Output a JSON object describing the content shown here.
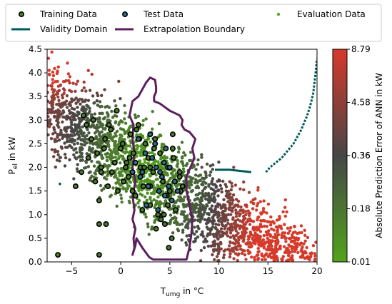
{
  "chart_data": {
    "type": "scatter",
    "title": "",
    "xlabel": "T",
    "xlabel_sub": "umg",
    "xlabel_suffix": " in °C",
    "ylabel": "P",
    "ylabel_sub": "el",
    "ylabel_suffix": " in kW",
    "xlim": [
      -7.5,
      20
    ],
    "ylim": [
      0,
      4.5
    ],
    "xticks": [
      -5,
      0,
      5,
      10,
      15,
      20
    ],
    "yticks": [
      0.0,
      0.5,
      1.0,
      1.5,
      2.0,
      2.5,
      3.0,
      3.5,
      4.0,
      4.5
    ],
    "xtick_labels": [
      "−5",
      "0",
      "5",
      "10",
      "15",
      "20"
    ],
    "ytick_labels": [
      "0.0",
      "0.5",
      "1.0",
      "1.5",
      "2.0",
      "2.5",
      "3.0",
      "3.5",
      "4.0",
      "4.5"
    ],
    "grid": false,
    "legend_position": "top",
    "legend": [
      {
        "name": "Training Data",
        "kind": "marker",
        "face": "#4a7a2a",
        "edge": "#000000"
      },
      {
        "name": "Test Data",
        "kind": "marker",
        "face": "#2c6e8a",
        "edge": "#000000"
      },
      {
        "name": "Evaluation Data",
        "kind": "dot",
        "face": "#5aa032"
      },
      {
        "name": "Validity Domain",
        "kind": "line",
        "color": "#005a5a"
      },
      {
        "name": "Extrapolation Boundary",
        "kind": "line",
        "color": "#5c1f5e"
      }
    ],
    "colorbar": {
      "label": "Absolute Prediction Error of ANN in kW",
      "tick_labels": [
        "0.01",
        "0.18",
        "0.36",
        "0.36",
        "4.58",
        "8.79"
      ],
      "tick_positions": [
        0.01,
        0.18,
        0.36,
        0.37,
        4.58,
        8.79
      ],
      "min": 0.01,
      "max": 8.79,
      "colors": [
        "#52a41c",
        "#464646",
        "#d63a2a"
      ]
    },
    "series": [
      {
        "name": "Training Data",
        "x": [
          -6.4,
          -3.3,
          -3.0,
          -2.6,
          -2.0,
          -1.7,
          -1.3,
          -1.0,
          -0.6,
          -0.3,
          0.2,
          0.5,
          0.8,
          1.0,
          1.3,
          1.5,
          1.8,
          2.0,
          2.3,
          2.5,
          2.8,
          3.0,
          3.3,
          3.5,
          3.8,
          4.0,
          4.3,
          4.5,
          4.8,
          5.0,
          5.3,
          5.6,
          6.0,
          6.3,
          -4.6,
          -4.0,
          -3.5,
          -2.8,
          -2.2,
          -1.6,
          -0.9,
          -0.4,
          0.3,
          0.9,
          1.6,
          2.2,
          2.8,
          3.4,
          4.1,
          4.7,
          5.4,
          6.1,
          -3.8,
          -2.4,
          -1.2,
          0.0,
          1.2,
          2.4,
          3.6,
          4.8,
          6.0,
          -2.0,
          0.6,
          3.0,
          5.2,
          -1.5,
          1.9,
          4.4,
          -2.2,
          -2.2,
          4.9,
          5.3
        ],
        "y": [
          0.15,
          2.2,
          2.6,
          1.7,
          2.0,
          2.4,
          1.6,
          2.8,
          2.1,
          1.5,
          2.5,
          2.0,
          1.8,
          2.7,
          2.3,
          1.4,
          2.9,
          2.0,
          1.6,
          2.5,
          2.2,
          1.2,
          1.9,
          2.6,
          1.0,
          2.3,
          1.7,
          0.8,
          2.0,
          1.5,
          2.4,
          1.1,
          1.8,
          1.6,
          1.6,
          1.9,
          2.9,
          3.0,
          1.3,
          2.6,
          1.9,
          3.2,
          1.7,
          2.2,
          2.8,
          1.1,
          1.6,
          2.4,
          0.9,
          1.4,
          2.2,
          1.5,
          3.1,
          2.3,
          2.9,
          2.4,
          1.5,
          2.0,
          0.7,
          1.2,
          1.9,
          1.9,
          2.1,
          2.0,
          0.5,
          0.8,
          2.6,
          1.0,
          0.8,
          0.15,
          0.3,
          2.7
        ],
        "color": "#4a7a2a"
      },
      {
        "name": "Test Data",
        "x": [
          1.5,
          2.0,
          2.5,
          3.0,
          3.5,
          4.0,
          4.5,
          5.0,
          5.5,
          1.8,
          2.6,
          3.2,
          3.9,
          4.6,
          5.2,
          2.2,
          3.0,
          3.8,
          4.4,
          2.8,
          3.6,
          4.2,
          4.9,
          1.2,
          5.8
        ],
        "y": [
          2.1,
          1.8,
          2.3,
          1.6,
          2.5,
          1.9,
          1.4,
          2.0,
          1.7,
          2.6,
          1.2,
          2.2,
          1.5,
          2.4,
          1.3,
          1.9,
          2.7,
          1.1,
          2.1,
          1.6,
          2.0,
          1.8,
          1.6,
          1.9,
          1.5
        ],
        "color": "#2c6e8a"
      },
      {
        "name": "Evaluation Data",
        "note": "dense cloud shaded by error",
        "x": [],
        "y": [],
        "color": "#5aa032"
      }
    ],
    "lines": [
      {
        "name": "Extrapolation Boundary",
        "x": [
          2.6,
          2.2,
          1.8,
          1.2,
          0.9,
          1.3,
          1.2,
          1.4,
          1.2,
          1.5,
          1.2,
          1.4,
          1.2,
          1.5,
          1.3,
          1.4,
          1.2,
          1.5,
          1.6,
          2.2,
          2.9,
          3.3,
          4.3,
          5.0,
          6.7,
          7.0,
          7.2,
          7.3,
          7.0,
          6.7,
          6.7,
          7.1,
          7.5,
          7.3,
          7.6,
          7.0,
          6.5,
          6.2,
          6.3,
          6.0,
          5.0,
          4.0,
          3.4,
          3.4,
          3.6,
          3.6,
          3.5,
          3.0,
          2.6
        ],
        "y": [
          3.8,
          3.65,
          3.5,
          3.4,
          3.1,
          2.9,
          2.6,
          2.3,
          2.0,
          1.7,
          1.4,
          1.1,
          0.9,
          0.7,
          0.5,
          0.3,
          0.15,
          0.35,
          0.5,
          0.3,
          0.1,
          0.05,
          0.05,
          0.05,
          0.05,
          0.3,
          0.6,
          0.9,
          1.2,
          1.5,
          1.8,
          2.0,
          2.2,
          2.4,
          2.6,
          2.75,
          2.8,
          2.9,
          3.0,
          3.1,
          3.2,
          3.35,
          3.4,
          3.5,
          3.6,
          3.7,
          3.85,
          3.9,
          3.8
        ]
      },
      {
        "name": "Validity Domain",
        "x": [
          14.8,
          15.0,
          15.2,
          15.5,
          15.8,
          16.1,
          16.4,
          16.8,
          17.2,
          17.6,
          18.0,
          18.4,
          18.7,
          19.0,
          19.3,
          19.6,
          19.8,
          20.0
        ],
        "y": [
          1.9,
          1.95,
          2.0,
          2.05,
          2.1,
          2.15,
          2.2,
          2.3,
          2.4,
          2.5,
          2.65,
          2.8,
          2.95,
          3.1,
          3.3,
          3.55,
          3.9,
          4.3
        ]
      },
      {
        "name": "Validity Domain",
        "x": [
          9.6,
          9.9,
          10.2,
          10.5,
          10.8,
          11.1,
          13.3
        ],
        "y": [
          1.95,
          1.95,
          1.95,
          1.95,
          1.95,
          1.95,
          1.9
        ]
      },
      {
        "name": "Validity Domain",
        "x": [
          -6.2
        ],
        "y": [
          1.65
        ]
      }
    ]
  }
}
